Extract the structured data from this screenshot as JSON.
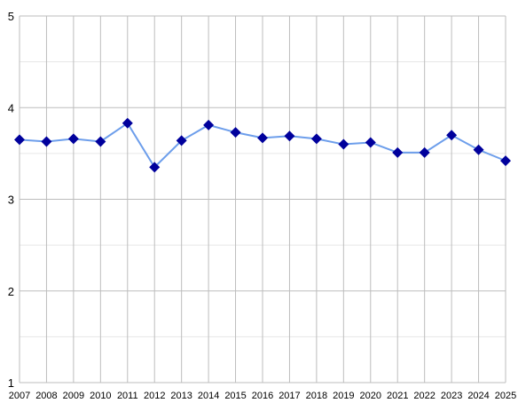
{
  "chart_data": {
    "type": "line",
    "categories": [
      "2007",
      "2008",
      "2009",
      "2010",
      "2011",
      "2012",
      "2013",
      "2014",
      "2015",
      "2016",
      "2017",
      "2018",
      "2019",
      "2020",
      "2021",
      "2022",
      "2023",
      "2024",
      "2025"
    ],
    "values": [
      3.65,
      3.63,
      3.66,
      3.63,
      3.83,
      3.35,
      3.64,
      3.81,
      3.73,
      3.67,
      3.69,
      3.66,
      3.6,
      3.62,
      3.51,
      3.51,
      3.7,
      3.54,
      3.42
    ],
    "color": "#6d9eeb",
    "marker_color": "#00009c",
    "ylim": [
      1,
      5
    ],
    "yticks": [
      1,
      2,
      3,
      4,
      5
    ],
    "grid": true,
    "minor_grid": true
  }
}
